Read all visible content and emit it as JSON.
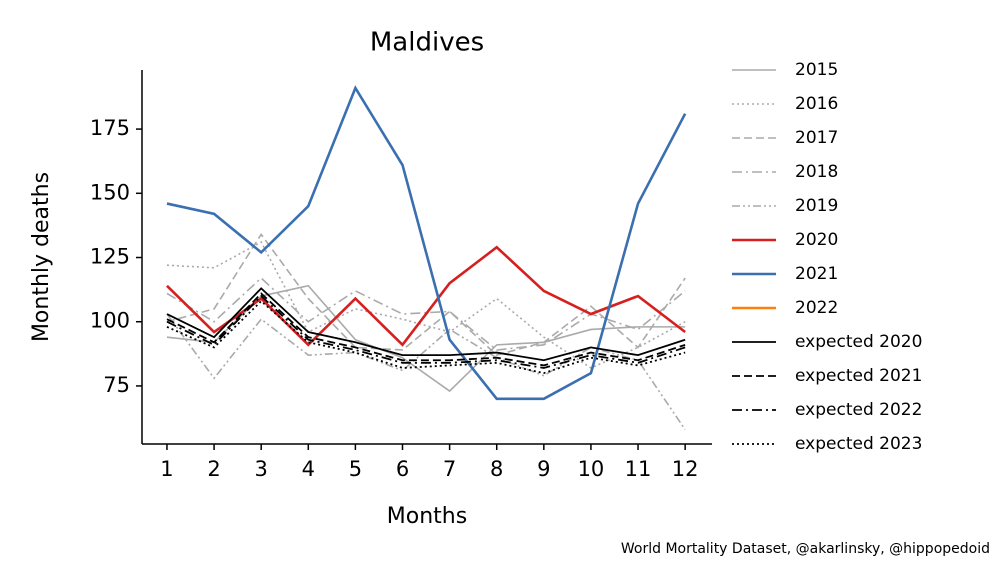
{
  "chart_data": {
    "type": "line",
    "title": "Maldives",
    "xlabel": "Months",
    "ylabel": "Monthly deaths",
    "source": "World Mortality Dataset, @akarlinsky, @hippopedoid",
    "x": [
      1,
      2,
      3,
      4,
      5,
      6,
      7,
      8,
      9,
      10,
      11,
      12
    ],
    "xlim": [
      0.47,
      12.57
    ],
    "xticks": [
      1,
      2,
      3,
      4,
      5,
      6,
      7,
      8,
      9,
      10,
      11,
      12
    ],
    "ylim": [
      52.4,
      198
    ],
    "yticks": [
      75,
      100,
      125,
      150,
      175
    ],
    "series": [
      {
        "name": "2015",
        "color": "#aaaaaa",
        "linestyle": "solid",
        "values": [
          94,
          92,
          110,
          114,
          93,
          86,
          73,
          91,
          92,
          97,
          98,
          98
        ]
      },
      {
        "name": "2016",
        "color": "#aaaaaa",
        "linestyle": "dotted",
        "values": [
          122,
          121,
          131,
          96,
          105,
          101,
          96,
          109,
          94,
          82,
          90,
          100
        ]
      },
      {
        "name": "2017",
        "color": "#aaaaaa",
        "linestyle": "dashed",
        "values": [
          100,
          105,
          134,
          109,
          90,
          89,
          104,
          87,
          92,
          106,
          90,
          117
        ]
      },
      {
        "name": "2018",
        "color": "#aaaaaa",
        "linestyle": "dashdot",
        "values": [
          111,
          100,
          117,
          100,
          112,
          103,
          104,
          89,
          91,
          103,
          97,
          112
        ]
      },
      {
        "name": "2019",
        "color": "#aaaaaa",
        "linestyle": "dashdotdot",
        "values": [
          103,
          78,
          101,
          87,
          88,
          81,
          97,
          86,
          79,
          90,
          85,
          58
        ]
      },
      {
        "name": "2020",
        "color": "#d62020",
        "linestyle": "solid",
        "values": [
          114,
          96,
          109,
          91,
          109,
          91,
          115,
          129,
          112,
          103,
          110,
          96
        ]
      },
      {
        "name": "2021",
        "color": "#3a6fb0",
        "linestyle": "solid",
        "values": [
          146,
          142,
          127,
          145,
          191,
          161,
          93,
          70,
          70,
          80,
          146,
          181
        ]
      },
      {
        "name": "2022",
        "color": "#ff7f0e",
        "linestyle": "solid",
        "values": [
          null,
          null,
          null,
          null,
          null,
          null,
          null,
          null,
          null,
          null,
          null,
          null
        ]
      },
      {
        "name": "expected 2020",
        "color": "#000000",
        "linestyle": "solid",
        "values": [
          103,
          94,
          113,
          96,
          92,
          87,
          87,
          88,
          85,
          90,
          87,
          93
        ]
      },
      {
        "name": "expected 2021",
        "color": "#000000",
        "linestyle": "dashed",
        "values": [
          101,
          92,
          111,
          94,
          90,
          85,
          85,
          86,
          83,
          88,
          85,
          91
        ]
      },
      {
        "name": "expected 2022",
        "color": "#000000",
        "linestyle": "dashdot",
        "values": [
          100,
          91,
          110,
          93,
          89,
          84,
          84,
          85,
          82,
          87,
          84,
          90
        ]
      },
      {
        "name": "expected 2023",
        "color": "#000000",
        "linestyle": "dotted",
        "values": [
          98,
          90,
          108,
          92,
          88,
          82,
          83,
          84,
          80,
          86,
          83,
          88
        ]
      }
    ]
  }
}
